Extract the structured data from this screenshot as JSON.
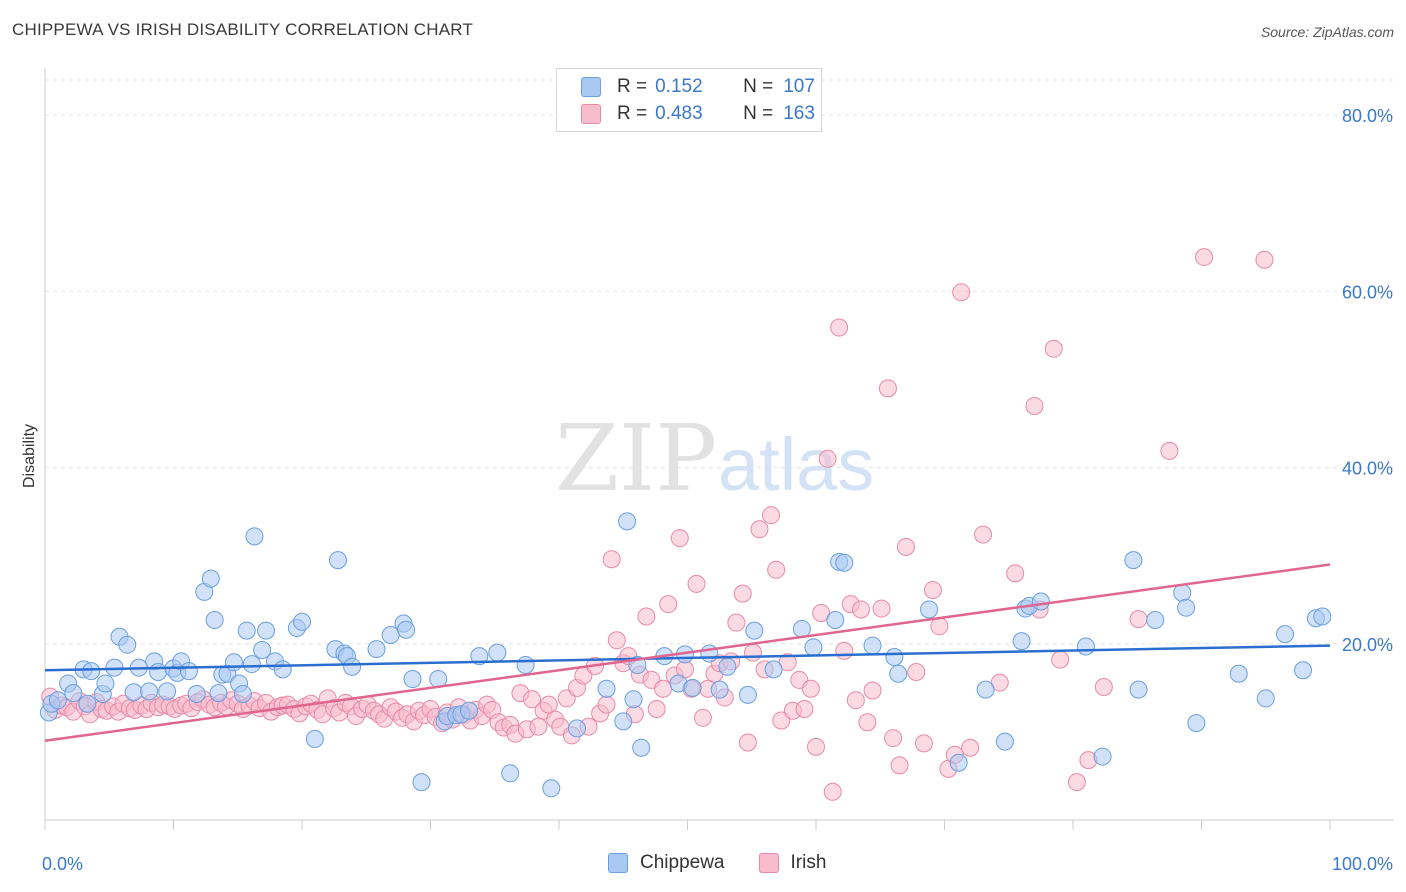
{
  "header": {
    "title": "CHIPPEWA VS IRISH DISABILITY CORRELATION CHART",
    "source": "Source: ZipAtlas.com"
  },
  "watermark": {
    "zip": "ZIP",
    "atlas": "atlas"
  },
  "legend": {
    "rows": [
      {
        "r_label": "R =",
        "r_value": "0.152",
        "n_label": "N =",
        "n_value": "107"
      },
      {
        "r_label": "R =",
        "r_value": "0.483",
        "n_label": "N =",
        "n_value": "163"
      }
    ]
  },
  "bottom_legend": {
    "items": [
      "Chippewa",
      "Irish"
    ]
  },
  "colors": {
    "chippewa_fill": "#a9c9f2",
    "chippewa_stroke": "#6a9fe0",
    "chippewa_line": "#2a6fcf",
    "irish_fill": "#f7bccd",
    "irish_stroke": "#e88aa6",
    "irish_line": "#e0658f",
    "tick_text": "#3b78c9",
    "grid": "#e3e3e3"
  },
  "chart_data": {
    "type": "scatter",
    "title": "CHIPPEWA VS IRISH DISABILITY CORRELATION CHART",
    "xlabel": "",
    "ylabel": "Disability",
    "xlim": [
      0,
      100
    ],
    "ylim": [
      0,
      84
    ],
    "x_tick_labels": [
      "0.0%",
      "100.0%"
    ],
    "y_ticks": [
      20,
      40,
      60,
      80
    ],
    "y_tick_labels": [
      "20.0%",
      "40.0%",
      "60.0%",
      "80.0%"
    ],
    "grid": true,
    "legend_position": "top-center",
    "series": [
      {
        "name": "Chippewa",
        "r": 0.152,
        "n": 107,
        "trend": {
          "x": [
            0,
            100
          ],
          "y": [
            17.0,
            19.8
          ]
        },
        "points": [
          [
            0.3,
            12.2
          ],
          [
            0.5,
            13.2
          ],
          [
            1,
            13.6
          ],
          [
            1.8,
            15.5
          ],
          [
            2.2,
            14.4
          ],
          [
            3,
            17.1
          ],
          [
            3.3,
            13.2
          ],
          [
            3.6,
            16.9
          ],
          [
            4.5,
            14.3
          ],
          [
            4.7,
            15.5
          ],
          [
            5.4,
            17.3
          ],
          [
            5.8,
            20.8
          ],
          [
            6.4,
            19.9
          ],
          [
            6.9,
            14.5
          ],
          [
            7.3,
            17.3
          ],
          [
            8.1,
            14.6
          ],
          [
            8.5,
            18.0
          ],
          [
            8.8,
            16.8
          ],
          [
            9.5,
            14.6
          ],
          [
            10,
            17.2
          ],
          [
            10.3,
            16.7
          ],
          [
            10.6,
            18.0
          ],
          [
            11.2,
            16.9
          ],
          [
            11.8,
            14.3
          ],
          [
            12.4,
            25.9
          ],
          [
            12.9,
            27.4
          ],
          [
            13.2,
            22.7
          ],
          [
            13.5,
            14.4
          ],
          [
            13.8,
            16.5
          ],
          [
            14.2,
            16.6
          ],
          [
            14.7,
            17.9
          ],
          [
            15.1,
            15.5
          ],
          [
            15.4,
            14.3
          ],
          [
            15.7,
            21.5
          ],
          [
            16.1,
            17.7
          ],
          [
            16.3,
            32.2
          ],
          [
            16.9,
            19.3
          ],
          [
            17.2,
            21.5
          ],
          [
            17.9,
            18.0
          ],
          [
            18.5,
            17.1
          ],
          [
            19.6,
            21.8
          ],
          [
            20.0,
            22.5
          ],
          [
            21.0,
            9.2
          ],
          [
            22.6,
            19.4
          ],
          [
            22.8,
            29.5
          ],
          [
            23.3,
            18.9
          ],
          [
            23.5,
            18.6
          ],
          [
            23.9,
            17.4
          ],
          [
            25.8,
            19.4
          ],
          [
            26.9,
            21.0
          ],
          [
            27.9,
            22.3
          ],
          [
            28.1,
            21.6
          ],
          [
            28.6,
            16.0
          ],
          [
            29.3,
            4.3
          ],
          [
            30.6,
            16.0
          ],
          [
            31.1,
            11.2
          ],
          [
            31.3,
            11.8
          ],
          [
            32.0,
            11.9
          ],
          [
            32.4,
            12.0
          ],
          [
            33.0,
            12.4
          ],
          [
            33.8,
            18.6
          ],
          [
            35.2,
            19.0
          ],
          [
            36.2,
            5.3
          ],
          [
            37.4,
            17.6
          ],
          [
            39.4,
            3.6
          ],
          [
            41.4,
            10.4
          ],
          [
            43.7,
            14.9
          ],
          [
            45.0,
            11.2
          ],
          [
            45.3,
            33.9
          ],
          [
            45.8,
            13.7
          ],
          [
            46.1,
            17.6
          ],
          [
            46.4,
            8.2
          ],
          [
            48.2,
            18.6
          ],
          [
            49.3,
            15.5
          ],
          [
            49.8,
            18.8
          ],
          [
            50.4,
            15.0
          ],
          [
            51.7,
            18.9
          ],
          [
            52.5,
            14.8
          ],
          [
            53.1,
            17.4
          ],
          [
            54.7,
            14.2
          ],
          [
            55.2,
            21.5
          ],
          [
            56.7,
            17.1
          ],
          [
            58.9,
            21.7
          ],
          [
            59.8,
            19.6
          ],
          [
            61.5,
            22.7
          ],
          [
            61.8,
            29.3
          ],
          [
            62.2,
            29.2
          ],
          [
            64.4,
            19.8
          ],
          [
            66.1,
            18.5
          ],
          [
            66.4,
            16.6
          ],
          [
            68.8,
            23.9
          ],
          [
            71.1,
            6.5
          ],
          [
            73.2,
            14.8
          ],
          [
            74.7,
            8.9
          ],
          [
            76.0,
            20.3
          ],
          [
            76.3,
            24.0
          ],
          [
            76.6,
            24.3
          ],
          [
            77.5,
            24.8
          ],
          [
            81.0,
            19.7
          ],
          [
            82.3,
            7.2
          ],
          [
            84.7,
            29.5
          ],
          [
            85.1,
            14.8
          ],
          [
            86.4,
            22.7
          ],
          [
            88.5,
            25.8
          ],
          [
            88.8,
            24.1
          ],
          [
            89.6,
            11.0
          ],
          [
            92.9,
            16.6
          ],
          [
            95.0,
            13.8
          ],
          [
            96.5,
            21.1
          ],
          [
            97.9,
            17.0
          ],
          [
            98.9,
            22.9
          ],
          [
            99.4,
            23.1
          ]
        ]
      },
      {
        "name": "Irish",
        "r": 0.483,
        "n": 163,
        "trend": {
          "x": [
            0,
            100
          ],
          "y": [
            9.0,
            29.0
          ]
        },
        "points": [
          [
            0.4,
            14.0
          ],
          [
            0.8,
            12.5
          ],
          [
            1.3,
            13.0
          ],
          [
            1.7,
            12.8
          ],
          [
            2.2,
            12.3
          ],
          [
            2.7,
            13.5
          ],
          [
            3.1,
            12.9
          ],
          [
            3.5,
            12.0
          ],
          [
            4.0,
            13.4
          ],
          [
            4.4,
            12.6
          ],
          [
            4.8,
            12.4
          ],
          [
            5.3,
            12.9
          ],
          [
            5.7,
            12.3
          ],
          [
            6.1,
            13.2
          ],
          [
            6.6,
            12.7
          ],
          [
            7.0,
            12.5
          ],
          [
            7.5,
            13.0
          ],
          [
            7.9,
            12.6
          ],
          [
            8.3,
            13.3
          ],
          [
            8.8,
            12.8
          ],
          [
            9.2,
            13.1
          ],
          [
            9.7,
            12.9
          ],
          [
            10.1,
            12.6
          ],
          [
            10.6,
            13.0
          ],
          [
            11.0,
            13.2
          ],
          [
            11.4,
            12.7
          ],
          [
            11.9,
            13.4
          ],
          [
            12.3,
            13.7
          ],
          [
            12.8,
            13.1
          ],
          [
            13.2,
            12.8
          ],
          [
            13.7,
            13.3
          ],
          [
            14.1,
            12.9
          ],
          [
            14.5,
            13.6
          ],
          [
            15.0,
            13.2
          ],
          [
            15.4,
            12.6
          ],
          [
            15.9,
            13.0
          ],
          [
            16.3,
            13.5
          ],
          [
            16.7,
            12.7
          ],
          [
            17.2,
            13.3
          ],
          [
            17.6,
            12.3
          ],
          [
            18.1,
            12.8
          ],
          [
            18.5,
            13.0
          ],
          [
            18.9,
            13.1
          ],
          [
            19.4,
            12.6
          ],
          [
            19.8,
            12.1
          ],
          [
            20.3,
            12.9
          ],
          [
            20.7,
            13.2
          ],
          [
            21.2,
            12.5
          ],
          [
            21.6,
            12.0
          ],
          [
            22.0,
            13.8
          ],
          [
            22.5,
            12.7
          ],
          [
            22.9,
            12.2
          ],
          [
            23.4,
            13.3
          ],
          [
            23.8,
            12.9
          ],
          [
            24.2,
            11.8
          ],
          [
            24.7,
            12.6
          ],
          [
            25.1,
            13.1
          ],
          [
            25.6,
            12.4
          ],
          [
            26.0,
            12.0
          ],
          [
            26.4,
            11.5
          ],
          [
            26.9,
            12.8
          ],
          [
            27.3,
            12.3
          ],
          [
            27.8,
            11.6
          ],
          [
            28.2,
            12.0
          ],
          [
            28.7,
            11.2
          ],
          [
            29.1,
            12.4
          ],
          [
            29.5,
            11.9
          ],
          [
            30.0,
            12.6
          ],
          [
            30.4,
            11.7
          ],
          [
            30.9,
            11.0
          ],
          [
            31.3,
            12.2
          ],
          [
            31.7,
            11.4
          ],
          [
            32.2,
            12.8
          ],
          [
            32.6,
            11.9
          ],
          [
            33.1,
            11.3
          ],
          [
            33.5,
            12.5
          ],
          [
            34.0,
            11.8
          ],
          [
            34.4,
            13.1
          ],
          [
            34.8,
            12.5
          ],
          [
            35.3,
            11.1
          ],
          [
            35.7,
            10.5
          ],
          [
            36.2,
            10.8
          ],
          [
            36.6,
            9.8
          ],
          [
            37.0,
            14.4
          ],
          [
            37.5,
            10.3
          ],
          [
            37.9,
            13.7
          ],
          [
            38.4,
            10.6
          ],
          [
            38.8,
            12.4
          ],
          [
            39.2,
            13.1
          ],
          [
            39.7,
            11.4
          ],
          [
            40.1,
            10.6
          ],
          [
            40.6,
            13.8
          ],
          [
            41.0,
            9.6
          ],
          [
            41.4,
            15.0
          ],
          [
            41.9,
            16.4
          ],
          [
            42.3,
            10.6
          ],
          [
            42.8,
            17.5
          ],
          [
            43.2,
            12.1
          ],
          [
            43.7,
            13.1
          ],
          [
            44.1,
            29.6
          ],
          [
            44.5,
            20.4
          ],
          [
            45.0,
            17.8
          ],
          [
            45.4,
            18.6
          ],
          [
            45.9,
            12.0
          ],
          [
            46.3,
            16.5
          ],
          [
            46.8,
            23.1
          ],
          [
            47.2,
            15.9
          ],
          [
            47.6,
            12.6
          ],
          [
            48.1,
            14.9
          ],
          [
            48.5,
            24.5
          ],
          [
            49.0,
            16.4
          ],
          [
            49.4,
            32.0
          ],
          [
            49.8,
            17.1
          ],
          [
            50.3,
            14.9
          ],
          [
            50.7,
            26.8
          ],
          [
            51.2,
            11.6
          ],
          [
            51.6,
            14.9
          ],
          [
            52.1,
            16.6
          ],
          [
            52.5,
            17.8
          ],
          [
            52.9,
            13.9
          ],
          [
            53.4,
            18.0
          ],
          [
            53.8,
            22.4
          ],
          [
            54.3,
            25.7
          ],
          [
            54.7,
            8.8
          ],
          [
            55.1,
            19.0
          ],
          [
            55.6,
            33.0
          ],
          [
            56.0,
            17.1
          ],
          [
            56.5,
            34.6
          ],
          [
            56.9,
            28.4
          ],
          [
            57.3,
            11.3
          ],
          [
            57.8,
            17.9
          ],
          [
            58.2,
            12.4
          ],
          [
            58.7,
            15.9
          ],
          [
            59.1,
            12.6
          ],
          [
            59.6,
            14.9
          ],
          [
            60.0,
            8.3
          ],
          [
            60.4,
            23.5
          ],
          [
            60.9,
            41.0
          ],
          [
            61.3,
            3.2
          ],
          [
            61.8,
            55.9
          ],
          [
            62.2,
            19.2
          ],
          [
            62.7,
            24.5
          ],
          [
            63.1,
            13.6
          ],
          [
            63.5,
            23.9
          ],
          [
            64.0,
            11.1
          ],
          [
            64.4,
            14.7
          ],
          [
            65.1,
            24.0
          ],
          [
            65.6,
            49.0
          ],
          [
            66.0,
            9.3
          ],
          [
            66.5,
            6.2
          ],
          [
            67.0,
            31.0
          ],
          [
            67.8,
            16.8
          ],
          [
            68.4,
            8.7
          ],
          [
            69.1,
            26.1
          ],
          [
            69.6,
            22.0
          ],
          [
            70.3,
            5.8
          ],
          [
            70.8,
            7.4
          ],
          [
            71.3,
            59.9
          ],
          [
            72.0,
            8.2
          ],
          [
            73.0,
            32.4
          ],
          [
            74.3,
            15.6
          ],
          [
            75.5,
            28.0
          ],
          [
            77.0,
            47.0
          ],
          [
            77.4,
            23.9
          ],
          [
            78.5,
            53.5
          ],
          [
            79.0,
            18.2
          ],
          [
            80.3,
            4.3
          ],
          [
            81.2,
            6.8
          ],
          [
            82.4,
            15.1
          ],
          [
            85.1,
            22.8
          ],
          [
            87.5,
            41.9
          ],
          [
            90.2,
            63.9
          ],
          [
            94.9,
            63.6
          ]
        ]
      }
    ]
  }
}
